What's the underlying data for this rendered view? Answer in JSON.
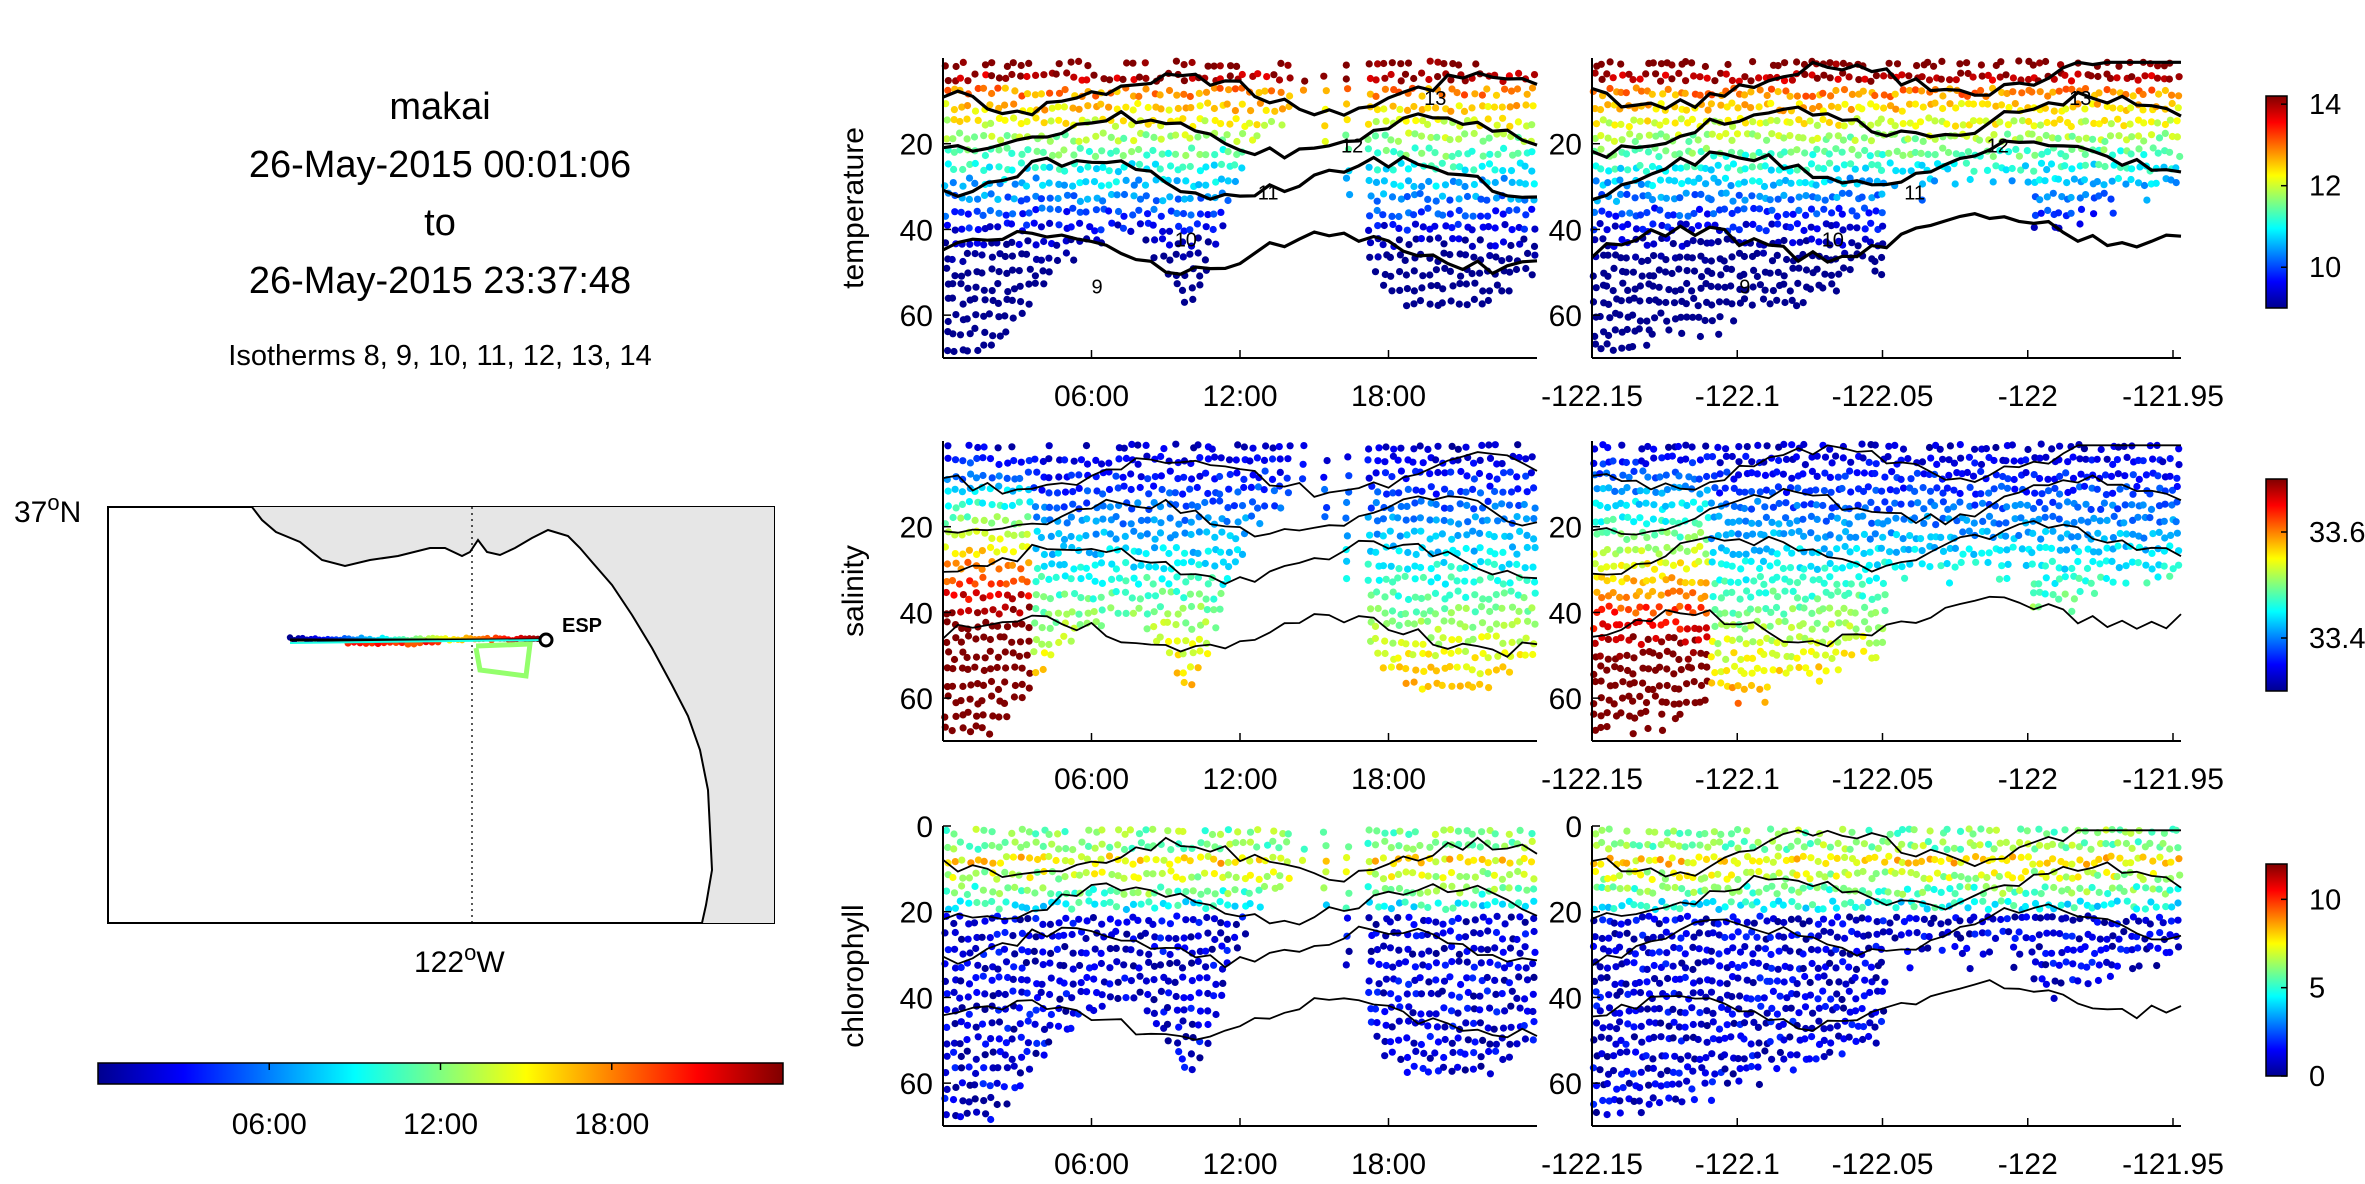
{
  "header": {
    "vehicle": "makai",
    "start": "26-May-2015 00:01:06",
    "to": "to",
    "end": "26-May-2015 23:37:48",
    "isotherms": "Isotherms 8, 9, 10, 11, 12, 13, 14"
  },
  "map": {
    "lat_label": "37",
    "lat_suffix": "N",
    "lon_label": "122",
    "lon_suffix": "W",
    "deg": "o",
    "station_label": "ESP",
    "land_color": "#e6e6e6"
  },
  "time_colorbar": {
    "ticks": [
      "06:00",
      "12:00",
      "18:00"
    ],
    "tick_values_hours": [
      6,
      12,
      18
    ],
    "range_hours": [
      0,
      24
    ]
  },
  "chart_data": [
    {
      "type": "scatter",
      "variable": "temperature",
      "xaxis_time": {
        "ticks": [
          "06:00",
          "12:00",
          "18:00"
        ],
        "tick_values_hours": [
          6,
          12,
          18
        ],
        "range_hours": [
          0,
          24
        ]
      },
      "xaxis_lon": {
        "ticks": [
          "-122.15",
          "-122.1",
          "-122.05",
          "-122",
          "-121.95"
        ],
        "range": [
          -122.15,
          -121.95
        ]
      },
      "yaxis": {
        "ticks": [
          "20",
          "40",
          "60"
        ],
        "tick_values": [
          20,
          40,
          60
        ],
        "range": [
          0,
          70
        ],
        "reversed": true
      },
      "colorbar": {
        "ticks": [
          "10",
          "12",
          "14"
        ],
        "tick_values": [
          10,
          12,
          14
        ],
        "range": [
          9,
          14.2
        ]
      },
      "contour_labels": [
        "9",
        "10",
        "11",
        "12",
        "13"
      ]
    },
    {
      "type": "scatter",
      "variable": "salinity",
      "xaxis_time": {
        "ticks": [
          "06:00",
          "12:00",
          "18:00"
        ],
        "tick_values_hours": [
          6,
          12,
          18
        ],
        "range_hours": [
          0,
          24
        ]
      },
      "xaxis_lon": {
        "ticks": [
          "-122.15",
          "-122.1",
          "-122.05",
          "-122",
          "-121.95"
        ],
        "range": [
          -122.15,
          -121.95
        ]
      },
      "yaxis": {
        "ticks": [
          "20",
          "40",
          "60"
        ],
        "tick_values": [
          20,
          40,
          60
        ],
        "range": [
          0,
          70
        ],
        "reversed": true
      },
      "colorbar": {
        "ticks": [
          "33.4",
          "33.6"
        ],
        "tick_values": [
          33.4,
          33.6
        ],
        "range": [
          33.3,
          33.7
        ]
      }
    },
    {
      "type": "scatter",
      "variable": "chlorophyll",
      "xaxis_time": {
        "ticks": [
          "06:00",
          "12:00",
          "18:00"
        ],
        "tick_values_hours": [
          6,
          12,
          18
        ],
        "range_hours": [
          0,
          24
        ]
      },
      "xaxis_lon": {
        "ticks": [
          "-122.15",
          "-122.1",
          "-122.05",
          "-122",
          "-121.95"
        ],
        "range": [
          -122.15,
          -121.95
        ]
      },
      "yaxis": {
        "ticks": [
          "0",
          "20",
          "40",
          "60"
        ],
        "tick_values": [
          0,
          20,
          40,
          60
        ],
        "range": [
          0,
          70
        ],
        "reversed": true
      },
      "colorbar": {
        "ticks": [
          "0",
          "5",
          "10"
        ],
        "tick_values": [
          0,
          5,
          10
        ],
        "range": [
          0,
          12
        ]
      }
    }
  ]
}
